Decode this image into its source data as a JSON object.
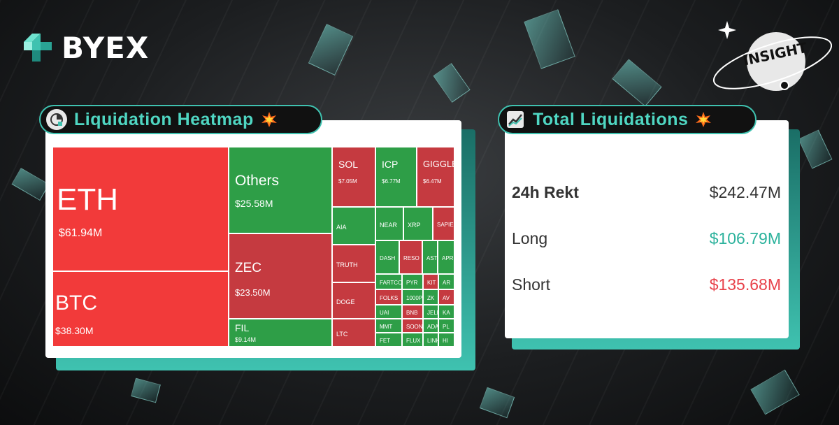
{
  "brand": {
    "name": "BYEX",
    "badge": "INSIGHT"
  },
  "colors": {
    "accent": "#3fc2b0",
    "red": "#f23a3a",
    "darkred": "#c53a40",
    "green": "#2e9e47",
    "long": "#2bb29c",
    "short": "#e8414a"
  },
  "heatmap_panel": {
    "title": "Liquidation Heatmap",
    "icon": "pie-chart-icon",
    "emoji": "collision-emoji"
  },
  "totals_panel": {
    "title": "Total Liquidations",
    "icon": "trend-chart-icon",
    "emoji": "collision-emoji"
  },
  "totals": [
    {
      "label": "24h Rekt",
      "value": "$242.47M",
      "tone": "neutral"
    },
    {
      "label": "Long",
      "value": "$106.79M",
      "tone": "long"
    },
    {
      "label": "Short",
      "value": "$135.68M",
      "tone": "short"
    }
  ],
  "chart_data": {
    "type": "heatmap",
    "title": "Liquidation Heatmap",
    "tiles": [
      {
        "symbol": "ETH",
        "value": 61.94,
        "label": "$61.94M",
        "color": "red"
      },
      {
        "symbol": "BTC",
        "value": 38.3,
        "label": "$38.30M",
        "color": "red"
      },
      {
        "symbol": "Others",
        "value": 25.58,
        "label": "$25.58M",
        "color": "green"
      },
      {
        "symbol": "ZEC",
        "value": 23.5,
        "label": "$23.50M",
        "color": "darkred"
      },
      {
        "symbol": "FIL",
        "value": 9.14,
        "label": "$9.14M",
        "color": "green"
      },
      {
        "symbol": "SOL",
        "value": 7.05,
        "label": "$7.05M",
        "color": "darkred"
      },
      {
        "symbol": "ICP",
        "value": 6.77,
        "label": "$6.77M",
        "color": "green"
      },
      {
        "symbol": "GIGGLE",
        "value": 6.47,
        "label": "$6.47M",
        "color": "darkred"
      },
      {
        "symbol": "AIA",
        "color": "green"
      },
      {
        "symbol": "TRUTH",
        "color": "darkred"
      },
      {
        "symbol": "DOGE",
        "color": "darkred"
      },
      {
        "symbol": "LTC",
        "color": "darkred"
      },
      {
        "symbol": "NEAR",
        "color": "green"
      },
      {
        "symbol": "XRP",
        "color": "green"
      },
      {
        "symbol": "SAPIE",
        "color": "darkred"
      },
      {
        "symbol": "DASH",
        "color": "green"
      },
      {
        "symbol": "RESO",
        "color": "darkred"
      },
      {
        "symbol": "AST",
        "color": "green"
      },
      {
        "symbol": "APR",
        "color": "green"
      },
      {
        "symbol": "FARTCO",
        "color": "green"
      },
      {
        "symbol": "PYR",
        "color": "green"
      },
      {
        "symbol": "KIT",
        "color": "darkred"
      },
      {
        "symbol": "AR",
        "color": "green"
      },
      {
        "symbol": "FOLKS",
        "color": "darkred"
      },
      {
        "symbol": "1000P",
        "color": "green"
      },
      {
        "symbol": "ZK",
        "color": "green"
      },
      {
        "symbol": "AV",
        "color": "darkred"
      },
      {
        "symbol": "UAI",
        "color": "green"
      },
      {
        "symbol": "BNB",
        "color": "darkred"
      },
      {
        "symbol": "JELL",
        "color": "green"
      },
      {
        "symbol": "KA",
        "color": "green"
      },
      {
        "symbol": "MMT",
        "color": "green"
      },
      {
        "symbol": "SOON",
        "color": "darkred"
      },
      {
        "symbol": "ADA",
        "color": "green"
      },
      {
        "symbol": "PL",
        "color": "green"
      },
      {
        "symbol": "FET",
        "color": "green"
      },
      {
        "symbol": "FLUX",
        "color": "green"
      },
      {
        "symbol": "LINK",
        "color": "green"
      },
      {
        "symbol": "HI",
        "color": "green"
      }
    ]
  }
}
